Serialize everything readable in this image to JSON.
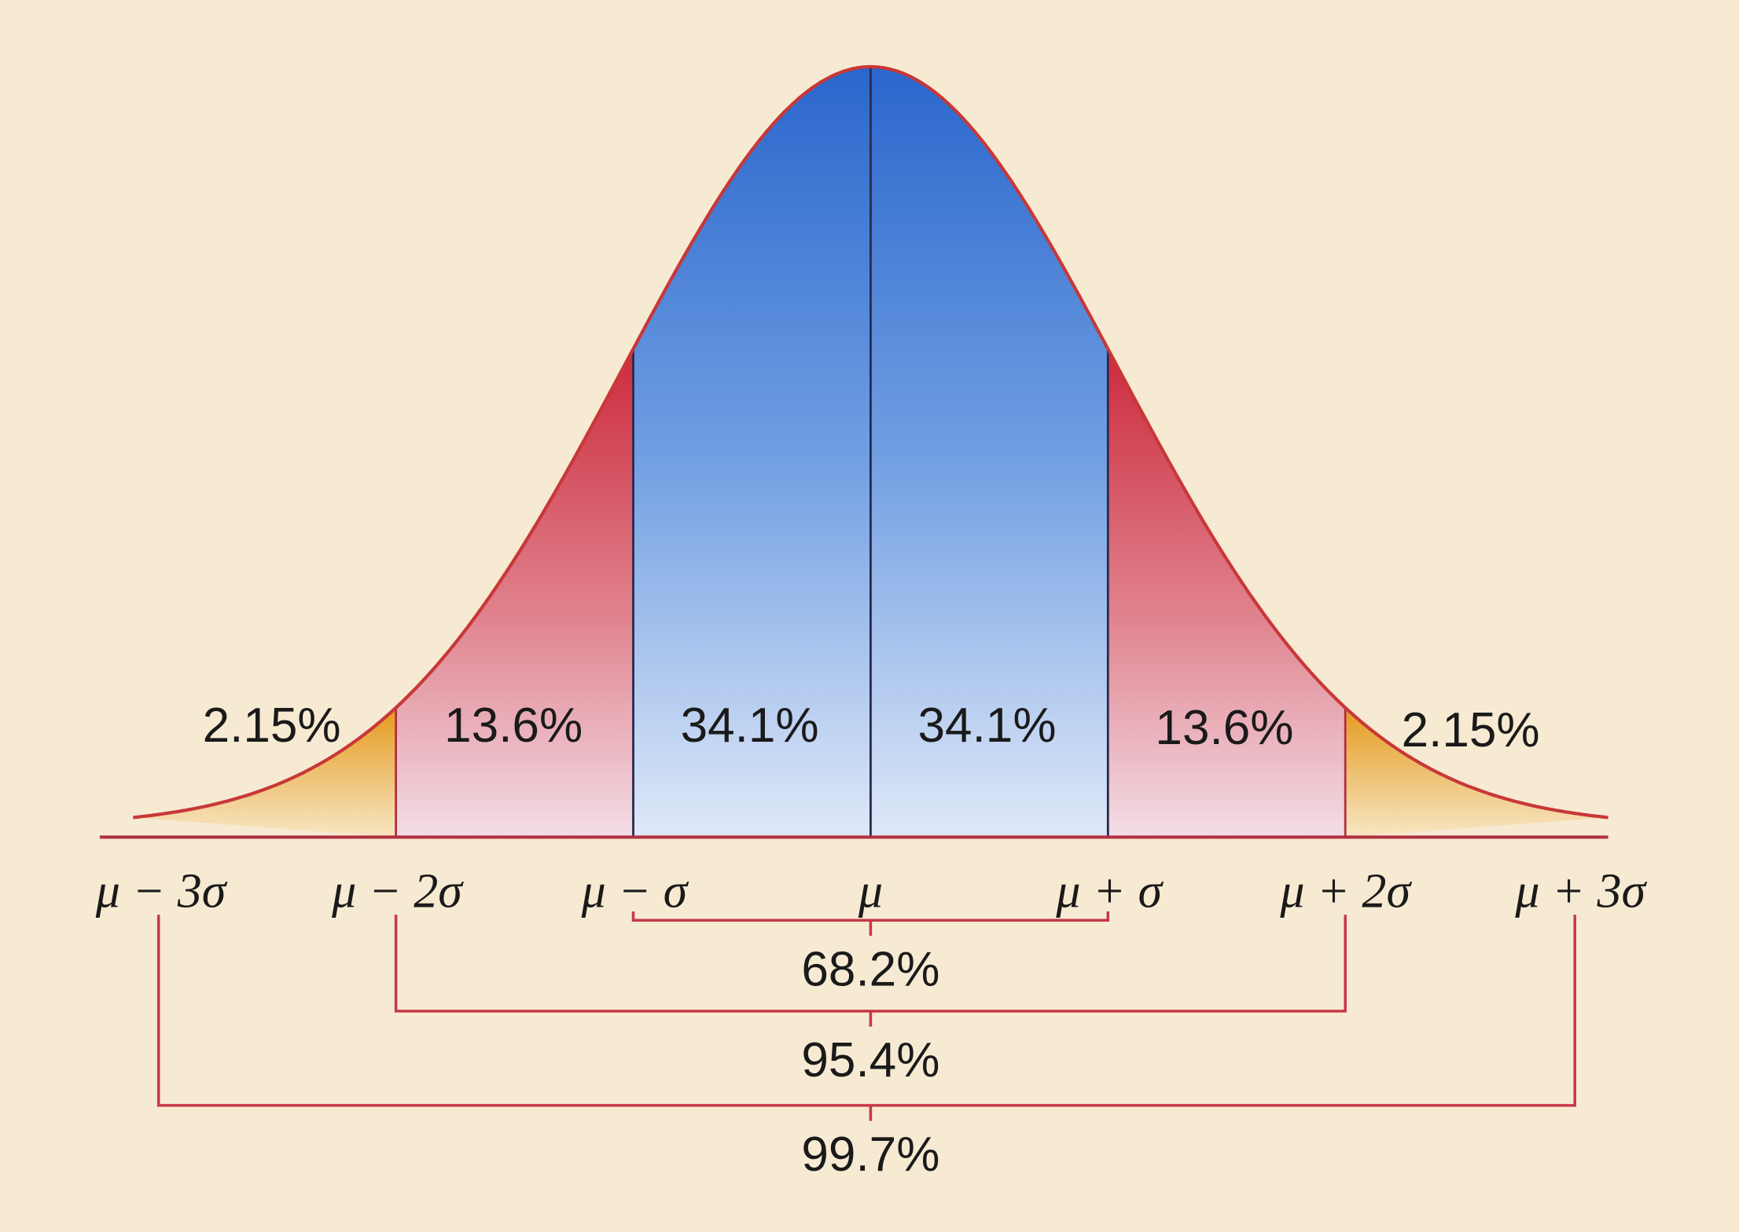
{
  "regions": [
    {
      "label": "2.15%"
    },
    {
      "label": "13.6%"
    },
    {
      "label": "34.1%"
    },
    {
      "label": "34.1%"
    },
    {
      "label": "13.6%"
    },
    {
      "label": "2.15%"
    }
  ],
  "axis_labels": [
    "μ − 3σ",
    "μ − 2σ",
    "μ − σ",
    "μ",
    "μ + σ",
    "μ + 2σ",
    "μ + 3σ"
  ],
  "brackets": [
    {
      "label": "68.2%"
    },
    {
      "label": "95.4%"
    },
    {
      "label": "99.7%"
    }
  ]
}
